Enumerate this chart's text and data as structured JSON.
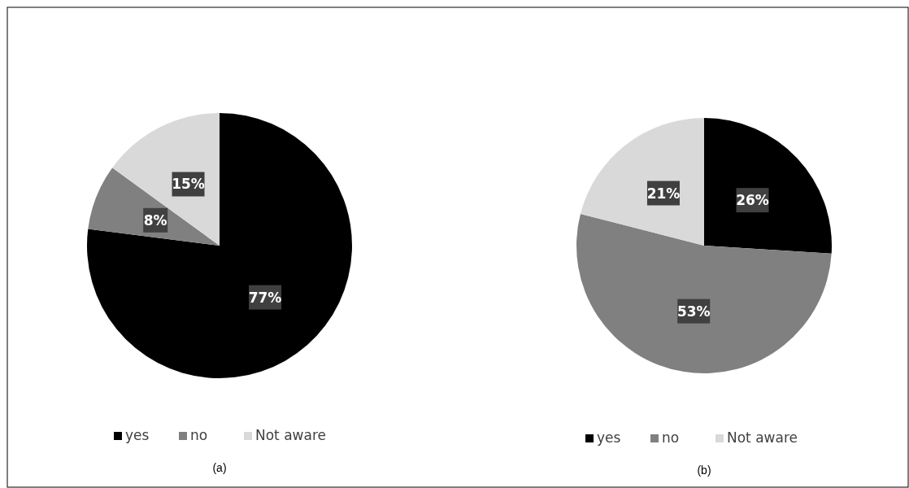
{
  "chart_data": [
    {
      "type": "pie",
      "title": "(a)",
      "categories": [
        "yes",
        "no",
        "Not aware"
      ],
      "values": [
        77,
        8,
        15
      ],
      "colors": [
        "#000000",
        "#808080",
        "#d9d9d9"
      ],
      "value_labels": [
        "77%",
        "8%",
        "15%"
      ],
      "legend": "bottom"
    },
    {
      "type": "pie",
      "title": "(b)",
      "categories": [
        "yes",
        "no",
        "Not aware"
      ],
      "values": [
        26,
        53,
        21
      ],
      "colors": [
        "#000000",
        "#808080",
        "#d9d9d9"
      ],
      "value_labels": [
        "26%",
        "53%",
        "21%"
      ],
      "legend": "bottom"
    }
  ]
}
